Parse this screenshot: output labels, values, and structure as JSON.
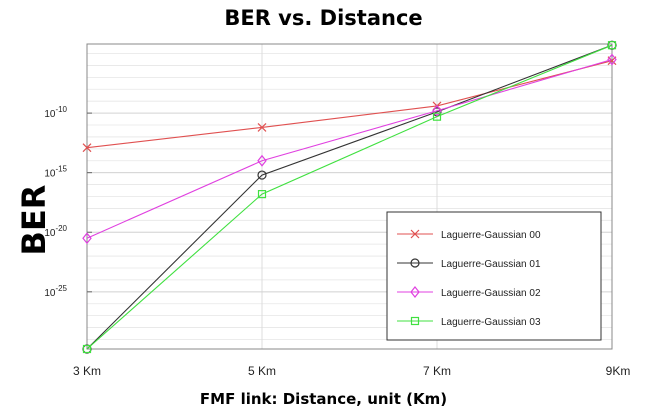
{
  "chart_data": {
    "type": "line",
    "title": "BER vs. Distance",
    "xlabel": "FMF link: Distance, unit (Km)",
    "ylabel": "BER",
    "yscale": "log",
    "x": [
      3,
      5,
      7,
      9
    ],
    "x_tick_labels": [
      "3 Km",
      "5 Km",
      "7 Km",
      "9Km"
    ],
    "y_tick_values": [
      1e-25,
      1e-20,
      1e-15,
      1e-10
    ],
    "y_tick_labels": [
      {
        "base": "10",
        "exp": "-25"
      },
      {
        "base": "10",
        "exp": "-20"
      },
      {
        "base": "10",
        "exp": "-15"
      },
      {
        "base": "10",
        "exp": "-10"
      }
    ],
    "xlim": [
      3,
      9
    ],
    "ylim_log10": [
      -29.8,
      -4.2
    ],
    "grid": true,
    "legend_position": "bottom-right",
    "series": [
      {
        "name": "Laguerre-Gaussian 00",
        "marker": "x",
        "color": "#e05050",
        "log10_values": [
          -12.9,
          -11.2,
          -9.4,
          -5.6
        ]
      },
      {
        "name": "Laguerre-Gaussian 01",
        "marker": "circle",
        "color": "#333333",
        "log10_values": [
          -29.8,
          -15.2,
          -9.9,
          -4.3
        ]
      },
      {
        "name": "Laguerre-Gaussian 02",
        "marker": "diamond",
        "color": "#e040e0",
        "log10_values": [
          -20.5,
          -14.0,
          -9.8,
          -5.5
        ]
      },
      {
        "name": "Laguerre-Gaussian 03",
        "marker": "square",
        "color": "#40e040",
        "log10_values": [
          -29.8,
          -16.8,
          -10.3,
          -4.3
        ]
      }
    ]
  }
}
